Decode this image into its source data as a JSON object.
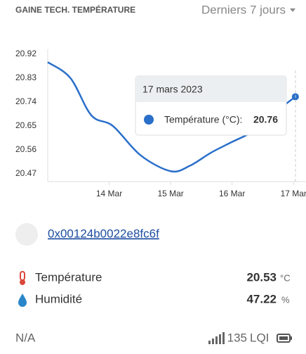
{
  "header": {
    "title": "GAINE TECH. TEMPÉRATURE",
    "period": "Derniers 7 jours"
  },
  "chart_data": {
    "type": "line",
    "x": [
      13.0,
      13.37,
      13.71,
      14.06,
      14.51,
      15.0,
      15.31,
      15.66,
      16.0,
      16.34,
      16.69,
      17.03
    ],
    "series": [
      {
        "name": "Température (°C)",
        "color": "#2a6fca",
        "values": [
          20.89,
          20.83,
          20.69,
          20.65,
          20.54,
          20.48,
          20.5,
          20.55,
          20.59,
          20.63,
          20.7,
          20.76
        ]
      }
    ],
    "xlim": [
      13.0,
      17.1
    ],
    "xticks": [
      {
        "value": 14,
        "label": "14 Mar"
      },
      {
        "value": 15,
        "label": "15 Mar"
      },
      {
        "value": 16,
        "label": "16 Mar"
      },
      {
        "value": 17,
        "label": "17 Mar"
      }
    ],
    "ylim": [
      20.47,
      20.92
    ],
    "yticks": [
      20.47,
      20.56,
      20.65,
      20.74,
      20.83,
      20.92
    ],
    "grid": false,
    "tooltip": {
      "date": "17 mars 2023",
      "label": "Température (°C):",
      "value": "20.76"
    }
  },
  "device": {
    "id": "0x00124b0022e8fc6f"
  },
  "sensors": [
    {
      "label": "Température",
      "value": "20.53",
      "unit": "°C"
    },
    {
      "label": "Humidité",
      "value": "47.22",
      "unit": "%"
    }
  ],
  "footer": {
    "status": "N/A",
    "lqi": "135",
    "lqi_unit": "LQI"
  }
}
